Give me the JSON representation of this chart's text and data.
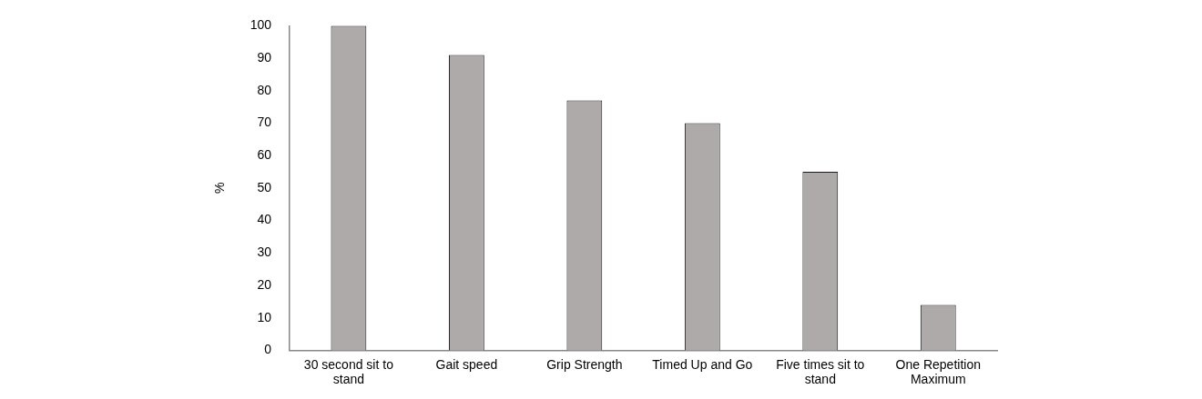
{
  "chart_data": {
    "type": "bar",
    "ylabel": "%",
    "categories": [
      "30 second sit to stand",
      "Gait speed",
      "Grip Strength",
      "Timed Up and Go",
      "Five times sit to stand",
      "One Repetition Maximum"
    ],
    "values": [
      100,
      91,
      77,
      70,
      55,
      14
    ],
    "color": "#aeaaaa",
    "ylim": [
      0,
      100
    ],
    "yticks": [
      0,
      10,
      20,
      30,
      40,
      50,
      60,
      70,
      80,
      90,
      100
    ],
    "grid": false,
    "legend": false
  }
}
